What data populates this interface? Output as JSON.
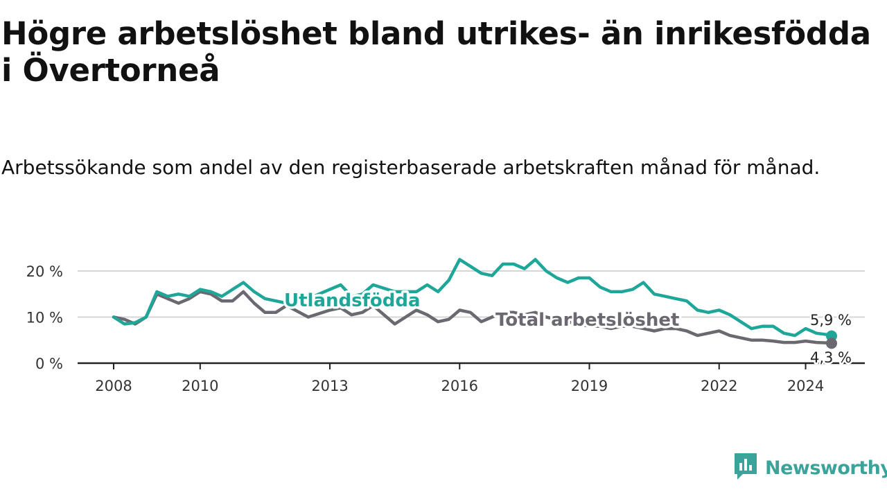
{
  "title": "Högre arbetslöshet bland utrikes- än inrikesfödda i Övertorneå",
  "subtitle": "Arbetssökande som andel av den registerbaserade arbetskraften månad för månad.",
  "brand": {
    "name": "Newsworthy",
    "icon": "newsworthy-logo-icon",
    "color": "#3aa39a"
  },
  "chart_data": {
    "type": "line",
    "x_ticks": [
      "2008",
      "2010",
      "2013",
      "2016",
      "2019",
      "2022",
      "2024"
    ],
    "y_ticks": [
      "0 %",
      "10 %",
      "20 %"
    ],
    "ylim": [
      0,
      20
    ],
    "xlim": [
      2008,
      2025
    ],
    "grid": true,
    "series": [
      {
        "name": "Utlandsfödda",
        "color": "#1ea699",
        "end_label": "5,9 %",
        "x": [
          2008.0,
          2008.25,
          2008.5,
          2008.75,
          2009.0,
          2009.25,
          2009.5,
          2009.75,
          2010.0,
          2010.25,
          2010.5,
          2010.75,
          2011.0,
          2011.25,
          2011.5,
          2011.75,
          2012.0,
          2012.5,
          2013.0,
          2013.25,
          2013.5,
          2013.75,
          2014.0,
          2014.5,
          2015.0,
          2015.25,
          2015.5,
          2015.75,
          2016.0,
          2016.25,
          2016.5,
          2016.75,
          2017.0,
          2017.25,
          2017.5,
          2017.75,
          2018.0,
          2018.25,
          2018.5,
          2018.75,
          2019.0,
          2019.25,
          2019.5,
          2019.75,
          2020.0,
          2020.25,
          2020.5,
          2020.75,
          2021.0,
          2021.25,
          2021.5,
          2021.75,
          2022.0,
          2022.25,
          2022.5,
          2022.75,
          2023.0,
          2023.25,
          2023.5,
          2023.75,
          2024.0,
          2024.25,
          2024.5,
          2024.6
        ],
        "values": [
          10.0,
          8.5,
          8.8,
          10.0,
          15.5,
          14.5,
          15.0,
          14.5,
          16.0,
          15.5,
          14.5,
          16.0,
          17.5,
          15.5,
          14.0,
          13.5,
          13.0,
          14.0,
          16.0,
          17.0,
          14.5,
          15.0,
          17.0,
          15.5,
          15.5,
          17.0,
          15.5,
          18.0,
          22.5,
          21.0,
          19.5,
          19.0,
          21.5,
          21.5,
          20.5,
          22.5,
          20.0,
          18.5,
          17.5,
          18.5,
          18.5,
          16.5,
          15.5,
          15.5,
          16.0,
          17.5,
          15.0,
          14.5,
          14.0,
          13.5,
          11.5,
          11.0,
          11.5,
          10.5,
          9.0,
          7.5,
          8.0,
          8.0,
          6.5,
          6.0,
          7.5,
          6.5,
          6.2,
          5.9
        ]
      },
      {
        "name": "Total arbetslöshet",
        "color": "#6b6870",
        "end_label": "4,3 %",
        "x": [
          2008.0,
          2008.25,
          2008.5,
          2008.75,
          2009.0,
          2009.25,
          2009.5,
          2009.75,
          2010.0,
          2010.25,
          2010.5,
          2010.75,
          2011.0,
          2011.25,
          2011.5,
          2011.75,
          2012.0,
          2012.5,
          2013.0,
          2013.25,
          2013.5,
          2013.75,
          2014.0,
          2014.5,
          2015.0,
          2015.25,
          2015.5,
          2015.75,
          2016.0,
          2016.25,
          2016.5,
          2016.75,
          2017.0,
          2017.25,
          2017.5,
          2017.75,
          2018.0,
          2018.25,
          2018.5,
          2018.75,
          2019.0,
          2019.25,
          2019.5,
          2019.75,
          2020.0,
          2020.25,
          2020.5,
          2020.75,
          2021.0,
          2021.25,
          2021.5,
          2021.75,
          2022.0,
          2022.25,
          2022.5,
          2022.75,
          2023.0,
          2023.25,
          2023.5,
          2023.75,
          2024.0,
          2024.25,
          2024.5,
          2024.6
        ],
        "values": [
          10.0,
          9.5,
          8.5,
          10.0,
          15.0,
          14.0,
          13.0,
          14.0,
          15.5,
          15.0,
          13.5,
          13.5,
          15.5,
          13.0,
          11.0,
          11.0,
          12.5,
          10.0,
          11.5,
          12.0,
          10.5,
          11.0,
          12.5,
          8.5,
          11.5,
          10.5,
          9.0,
          9.5,
          11.5,
          11.0,
          9.0,
          10.0,
          11.0,
          11.0,
          10.5,
          11.0,
          10.0,
          9.5,
          9.0,
          8.5,
          8.0,
          8.0,
          7.5,
          8.0,
          8.0,
          7.5,
          7.0,
          7.5,
          7.5,
          7.0,
          6.0,
          6.5,
          7.0,
          6.0,
          5.5,
          5.0,
          5.0,
          4.8,
          4.5,
          4.5,
          4.8,
          4.5,
          4.4,
          4.3
        ]
      }
    ]
  }
}
